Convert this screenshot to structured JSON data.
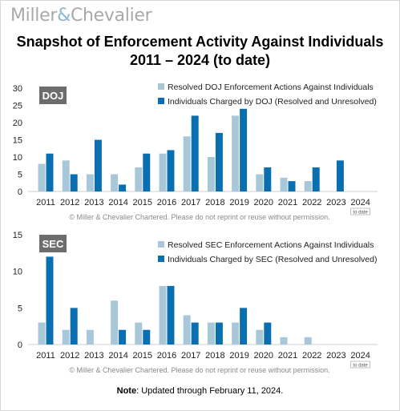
{
  "brand": {
    "name_left": "Miller",
    "amp": "&",
    "name_right": "Chevalier"
  },
  "title_line1": "Snapshot of Enforcement Activity Against Individuals",
  "title_line2": "2011 – 2024 (to date)",
  "note_label": "Note",
  "note_text": ": Updated through February 11, 2024.",
  "colors": {
    "resolved": "#a8c8da",
    "charged": "#0a6fb0",
    "badge": "#6d6d6d"
  },
  "chart_data": [
    {
      "type": "bar",
      "badge": "DOJ",
      "categories": [
        "2011",
        "2012",
        "2013",
        "2014",
        "2015",
        "2016",
        "2017",
        "2018",
        "2019",
        "2020",
        "2021",
        "2022",
        "2023",
        "2024"
      ],
      "last_category_note": "to date",
      "ylim": [
        0,
        30
      ],
      "yticks": [
        0,
        5,
        10,
        15,
        20,
        25,
        30
      ],
      "legend_position": "top-right",
      "copyright": "© Miller & Chevalier Chartered. Please do not reprint or reuse without permission.",
      "series": [
        {
          "name": "Resolved DOJ Enforcement Actions Against Individuals",
          "values": [
            8,
            9,
            5,
            5,
            7,
            11,
            16,
            10,
            22,
            5,
            4,
            3,
            0,
            0
          ]
        },
        {
          "name": "Individuals Charged by DOJ (Resolved and Unresolved)",
          "values": [
            11,
            5,
            15,
            2,
            11,
            12,
            22,
            17,
            24,
            7,
            3,
            7,
            9,
            0
          ]
        }
      ]
    },
    {
      "type": "bar",
      "badge": "SEC",
      "categories": [
        "2011",
        "2012",
        "2013",
        "2014",
        "2015",
        "2016",
        "2017",
        "2018",
        "2019",
        "2020",
        "2021",
        "2022",
        "2023",
        "2024"
      ],
      "last_category_note": "to date",
      "ylim": [
        0,
        15
      ],
      "yticks": [
        0,
        5,
        10,
        15
      ],
      "legend_position": "top-right",
      "copyright": "© Miller & Chevalier Chartered. Please do not reprint or reuse without permission.",
      "series": [
        {
          "name": "Resolved SEC Enforcement Actions Against Individuals",
          "values": [
            3,
            2,
            2,
            6,
            3,
            8,
            4,
            3,
            3,
            2,
            1,
            1,
            0,
            0
          ]
        },
        {
          "name": "Individuals Charged by SEC (Resolved and Unresolved)",
          "values": [
            12,
            5,
            0,
            2,
            2,
            8,
            3,
            3,
            5,
            3,
            0,
            0,
            0,
            0
          ]
        }
      ]
    }
  ]
}
